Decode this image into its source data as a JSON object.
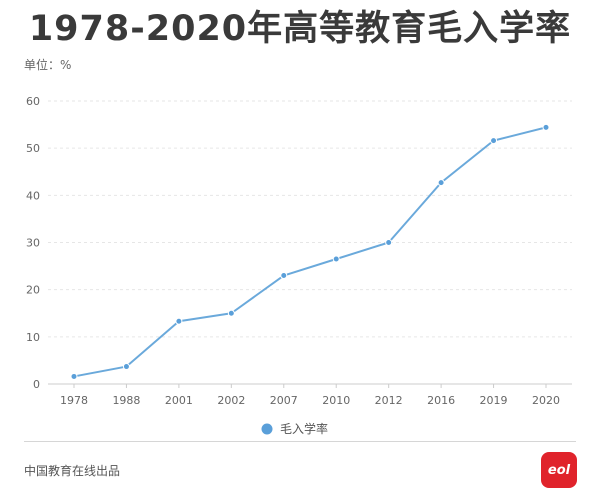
{
  "title": "1978-2020年高等教育毛入学率",
  "unit_label": "单位：%",
  "footer": "中国教育在线出品",
  "logo": {
    "text": "eol"
  },
  "colors": {
    "line": "#6aa9db",
    "marker": "#5a9fd9",
    "grid": "#e6e6e6",
    "axis": "#cccccc",
    "text": "#666666",
    "logo_bg": "#e0232b"
  },
  "chart_data": {
    "type": "line",
    "title": "1978-2020年高等教育毛入学率",
    "ylabel": "单位：%",
    "xlabel": "",
    "categories": [
      "1978",
      "1988",
      "2001",
      "2002",
      "2007",
      "2010",
      "2012",
      "2016",
      "2019",
      "2020"
    ],
    "series": [
      {
        "name": "毛入学率",
        "values": [
          1.6,
          3.7,
          13.3,
          15.0,
          23.0,
          26.5,
          30.0,
          42.7,
          51.6,
          54.4
        ]
      }
    ],
    "ylim": [
      0,
      60
    ],
    "yticks": [
      0,
      10,
      20,
      30,
      40,
      50,
      60
    ],
    "grid": true,
    "legend_position": "bottom"
  }
}
